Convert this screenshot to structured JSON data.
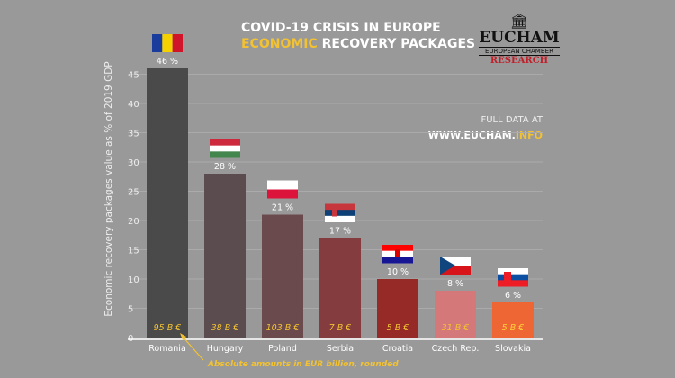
{
  "chart_data": {
    "type": "bar",
    "title_line1": "COVID-19 CRISIS IN EUROPE",
    "title_line2_highlight": "ECONOMIC",
    "title_line2_rest": " RECOVERY PACKAGES",
    "ylabel": "Economic recovery packages value as % of 2019 GDP",
    "xlabel": "",
    "ylim": [
      0,
      45
    ],
    "yticks": [
      0,
      5,
      10,
      15,
      20,
      25,
      30,
      35,
      40,
      45
    ],
    "grid": true,
    "categories": [
      "Romania",
      "Hungary",
      "Poland",
      "Serbia",
      "Croatia",
      "Czech Rep.",
      "Slovakia"
    ],
    "values": [
      46,
      28,
      21,
      17,
      10,
      8,
      6
    ],
    "value_labels": [
      "46 %",
      "28 %",
      "21 %",
      "17 %",
      "10 %",
      "8 %",
      "6 %"
    ],
    "amount_labels": [
      "95 B €",
      "38 B €",
      "103 B €",
      "7 B €",
      "5 B €",
      "31 B €",
      "5 B €"
    ],
    "colors": [
      "#4a4a4a",
      "#5b4d4f",
      "#6b4a4e",
      "#843c3f",
      "#962a27",
      "#d4787a",
      "#ee6633"
    ],
    "flags": [
      "romania",
      "hungary",
      "poland",
      "serbia",
      "croatia",
      "czech",
      "slovakia"
    ],
    "annotation": "Absolute amounts in EUR billion, rounded"
  },
  "source": {
    "line1": "FULL DATA AT",
    "url_main": "WWW.EUCHAM.",
    "url_highlight": "INFO"
  },
  "logo": {
    "name": "EUCHAM",
    "sub": "EUROPEAN CHAMBER",
    "research": "RESEARCH"
  }
}
